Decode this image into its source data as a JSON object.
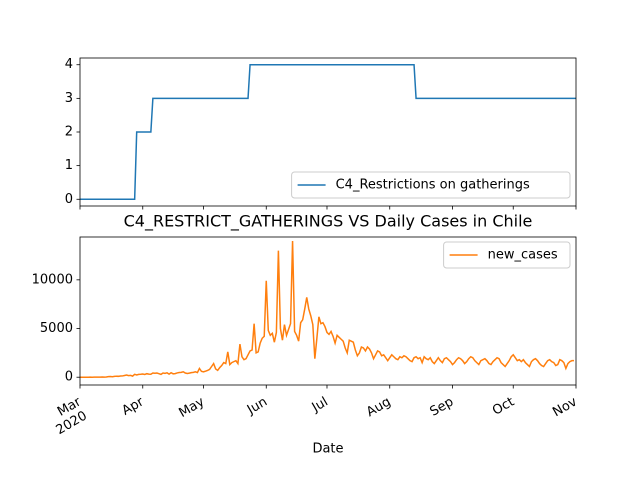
{
  "chart_data": [
    {
      "type": "line",
      "series": [
        {
          "name": "C4_Restrictions on gatherings",
          "color": "#1f77b4",
          "x": [
            0,
            27,
            28,
            35,
            36,
            83,
            84,
            165,
            166,
            245
          ],
          "values": [
            0,
            0,
            2,
            2,
            3,
            3,
            4,
            4,
            3,
            3
          ]
        }
      ],
      "xlim": [
        0,
        245
      ],
      "xticks": [
        0,
        31,
        61,
        92,
        122,
        153,
        184,
        214,
        245
      ],
      "ylim": [
        -0.2,
        4.2
      ],
      "yticks": [
        0,
        1,
        2,
        3,
        4
      ],
      "legend": "lower right"
    },
    {
      "type": "line",
      "title": "C4_RESTRICT_GATHERINGS VS Daily Cases in Chile",
      "x_label": "Date",
      "series": [
        {
          "name": "new_cases",
          "color": "#ff7f0e",
          "x": [
            0,
            1,
            2,
            3,
            4,
            5,
            6,
            7,
            8,
            9,
            10,
            11,
            12,
            13,
            14,
            15,
            16,
            17,
            18,
            19,
            20,
            21,
            22,
            23,
            24,
            25,
            26,
            27,
            28,
            29,
            30,
            31,
            32,
            33,
            34,
            35,
            36,
            37,
            38,
            39,
            40,
            41,
            42,
            43,
            44,
            45,
            46,
            47,
            48,
            49,
            50,
            51,
            52,
            53,
            54,
            55,
            56,
            57,
            58,
            59,
            60,
            61,
            62,
            63,
            64,
            65,
            66,
            67,
            68,
            69,
            70,
            71,
            72,
            73,
            74,
            75,
            76,
            77,
            78,
            79,
            80,
            81,
            82,
            83,
            84,
            85,
            86,
            87,
            88,
            89,
            90,
            91,
            92,
            93,
            94,
            95,
            96,
            97,
            98,
            99,
            100,
            101,
            102,
            103,
            104,
            105,
            106,
            107,
            108,
            109,
            110,
            111,
            112,
            113,
            114,
            115,
            116,
            117,
            118,
            119,
            120,
            121,
            122,
            123,
            124,
            125,
            126,
            127,
            128,
            129,
            130,
            131,
            132,
            133,
            134,
            135,
            136,
            137,
            138,
            139,
            140,
            141,
            142,
            143,
            144,
            145,
            146,
            147,
            148,
            149,
            150,
            151,
            152,
            153,
            154,
            155,
            156,
            157,
            158,
            159,
            160,
            161,
            162,
            163,
            164,
            165,
            166,
            167,
            168,
            169,
            170,
            171,
            172,
            173,
            174,
            175,
            176,
            177,
            178,
            179,
            180,
            181,
            182,
            183,
            184,
            185,
            186,
            187,
            188,
            189,
            190,
            191,
            192,
            193,
            194,
            195,
            196,
            197,
            198,
            199,
            200,
            201,
            202,
            203,
            204,
            205,
            206,
            207,
            208,
            209,
            210,
            211,
            212,
            213,
            214,
            215,
            216,
            217,
            218,
            219,
            220,
            221,
            222,
            223,
            224,
            225,
            226,
            227,
            228,
            229,
            230,
            231,
            232,
            233,
            234,
            235,
            236,
            237,
            238,
            239,
            240,
            241,
            242,
            243,
            244
          ],
          "values": [
            0,
            0,
            0,
            1,
            0,
            4,
            2,
            3,
            6,
            11,
            10,
            23,
            13,
            19,
            59,
            74,
            46,
            86,
            105,
            92,
            120,
            130,
            176,
            220,
            164,
            188,
            113,
            300,
            230,
            293,
            299,
            330,
            280,
            360,
            320,
            300,
            430,
            410,
            426,
            360,
            290,
            430,
            400,
            450,
            320,
            460,
            350,
            370,
            440,
            480,
            500,
            560,
            430,
            380,
            420,
            470,
            500,
            560,
            480,
            900,
            600,
            550,
            620,
            700,
            800,
            1100,
            1400,
            850,
            700,
            980,
            1200,
            1500,
            1400,
            2600,
            1300,
            1500,
            1600,
            1700,
            1400,
            3400,
            2100,
            1800,
            1900,
            2300,
            2700,
            2800,
            5500,
            2500,
            2600,
            3500,
            4000,
            4200,
            9900,
            4800,
            4300,
            4500,
            3600,
            4600,
            13000,
            5000,
            3800,
            5400,
            4300,
            4900,
            5500,
            13990,
            4700,
            4300,
            3700,
            5600,
            5900,
            7000,
            8200,
            7000,
            6300,
            5400,
            1900,
            4000,
            6200,
            5500,
            5600,
            5200,
            4600,
            4400,
            4700,
            4200,
            3500,
            4300,
            4100,
            3900,
            3700,
            3000,
            2500,
            3800,
            3700,
            3600,
            2800,
            2200,
            2500,
            3100,
            3000,
            2700,
            3100,
            2900,
            2500,
            1900,
            2300,
            2700,
            2600,
            2200,
            2300,
            2000,
            1700,
            2000,
            2300,
            2100,
            1900,
            1800,
            2100,
            2000,
            2200,
            2100,
            1900,
            1700,
            1600,
            2000,
            2100,
            1900,
            2000,
            1500,
            2100,
            1900,
            1800,
            2000,
            1600,
            1400,
            1700,
            2000,
            1700,
            1500,
            1900,
            2000,
            1800,
            1600,
            1300,
            1500,
            1800,
            2000,
            1900,
            1700,
            1400,
            1600,
            1900,
            2100,
            2000,
            1700,
            1500,
            1300,
            1700,
            1800,
            1900,
            1700,
            1400,
            1300,
            1600,
            1800,
            2000,
            1900,
            1500,
            1300,
            1100,
            1400,
            1700,
            2100,
            2300,
            2000,
            1700,
            1800,
            1600,
            1800,
            1500,
            1300,
            1100,
            1600,
            1800,
            1900,
            1700,
            1400,
            1200,
            1100,
            1400,
            1700,
            1800,
            1600,
            1500,
            1200,
            1300,
            1800,
            1700,
            1500,
            900,
            1400,
            1600,
            1700,
            1700
          ]
        }
      ],
      "xlim": [
        0,
        245
      ],
      "xticks": [
        {
          "value": 0,
          "label": "Mar"
        },
        {
          "value": 31,
          "label": "Apr"
        },
        {
          "value": 61,
          "label": "May"
        },
        {
          "value": 92,
          "label": "Jun"
        },
        {
          "value": 122,
          "label": "Jul"
        },
        {
          "value": 153,
          "label": "Aug"
        },
        {
          "value": 184,
          "label": "Sep"
        },
        {
          "value": 214,
          "label": "Oct"
        },
        {
          "value": 245,
          "label": "Nov"
        }
      ],
      "x_tick_sublabel": "2020",
      "ylim": [
        -800,
        14400
      ],
      "yticks": [
        0,
        5000,
        10000
      ],
      "legend": "upper right"
    }
  ]
}
